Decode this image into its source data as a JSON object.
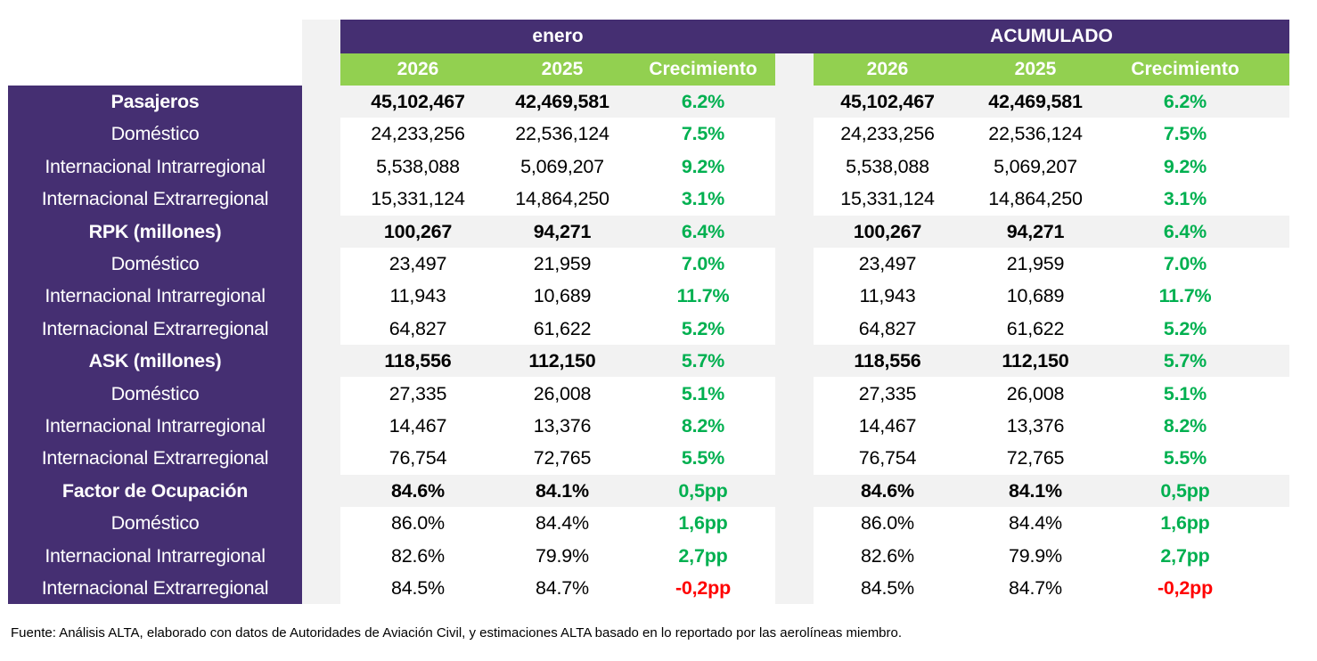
{
  "header": {
    "period_label": "enero",
    "cumulative_label": "ACUMULADO",
    "columns": [
      "2026",
      "2025",
      "Crecimiento"
    ]
  },
  "colors": {
    "header_purple": "#452f72",
    "header_green": "#92d050",
    "positive": "#00b050",
    "negative": "#ff0000",
    "section_row_bg": "#f2f2f2"
  },
  "rows": [
    {
      "label": "Pasajeros",
      "section": true,
      "enero": [
        "45,102,467",
        "42,469,581",
        "6.2%"
      ],
      "acumulado": [
        "45,102,467",
        "42,469,581",
        "6.2%"
      ]
    },
    {
      "label": "Doméstico",
      "section": false,
      "enero": [
        "24,233,256",
        "22,536,124",
        "7.5%"
      ],
      "acumulado": [
        "24,233,256",
        "22,536,124",
        "7.5%"
      ]
    },
    {
      "label": "Internacional Intrarregional",
      "section": false,
      "enero": [
        "5,538,088",
        "5,069,207",
        "9.2%"
      ],
      "acumulado": [
        "5,538,088",
        "5,069,207",
        "9.2%"
      ]
    },
    {
      "label": "Internacional Extrarregional",
      "section": false,
      "enero": [
        "15,331,124",
        "14,864,250",
        "3.1%"
      ],
      "acumulado": [
        "15,331,124",
        "14,864,250",
        "3.1%"
      ]
    },
    {
      "label": "RPK (millones)",
      "section": true,
      "enero": [
        "100,267",
        "94,271",
        "6.4%"
      ],
      "acumulado": [
        "100,267",
        "94,271",
        "6.4%"
      ]
    },
    {
      "label": "Doméstico",
      "section": false,
      "enero": [
        "23,497",
        "21,959",
        "7.0%"
      ],
      "acumulado": [
        "23,497",
        "21,959",
        "7.0%"
      ]
    },
    {
      "label": "Internacional Intrarregional",
      "section": false,
      "enero": [
        "11,943",
        "10,689",
        "11.7%"
      ],
      "acumulado": [
        "11,943",
        "10,689",
        "11.7%"
      ]
    },
    {
      "label": "Internacional Extrarregional",
      "section": false,
      "enero": [
        "64,827",
        "61,622",
        "5.2%"
      ],
      "acumulado": [
        "64,827",
        "61,622",
        "5.2%"
      ]
    },
    {
      "label": "ASK (millones)",
      "section": true,
      "enero": [
        "118,556",
        "112,150",
        "5.7%"
      ],
      "acumulado": [
        "118,556",
        "112,150",
        "5.7%"
      ]
    },
    {
      "label": "Doméstico",
      "section": false,
      "enero": [
        "27,335",
        "26,008",
        "5.1%"
      ],
      "acumulado": [
        "27,335",
        "26,008",
        "5.1%"
      ]
    },
    {
      "label": "Internacional Intrarregional",
      "section": false,
      "enero": [
        "14,467",
        "13,376",
        "8.2%"
      ],
      "acumulado": [
        "14,467",
        "13,376",
        "8.2%"
      ]
    },
    {
      "label": "Internacional Extrarregional",
      "section": false,
      "enero": [
        "76,754",
        "72,765",
        "5.5%"
      ],
      "acumulado": [
        "76,754",
        "72,765",
        "5.5%"
      ]
    },
    {
      "label": "Factor de Ocupación",
      "section": true,
      "enero": [
        "84.6%",
        "84.1%",
        "0,5pp"
      ],
      "acumulado": [
        "84.6%",
        "84.1%",
        "0,5pp"
      ]
    },
    {
      "label": "Doméstico",
      "section": false,
      "enero": [
        "86.0%",
        "84.4%",
        "1,6pp"
      ],
      "acumulado": [
        "86.0%",
        "84.4%",
        "1,6pp"
      ]
    },
    {
      "label": "Internacional Intrarregional",
      "section": false,
      "enero": [
        "82.6%",
        "79.9%",
        "2,7pp"
      ],
      "acumulado": [
        "82.6%",
        "79.9%",
        "2,7pp"
      ]
    },
    {
      "label": "Internacional Extrarregional",
      "section": false,
      "enero": [
        "84.5%",
        "84.7%",
        "-0,2pp"
      ],
      "acumulado": [
        "84.5%",
        "84.7%",
        "-0,2pp"
      ]
    }
  ],
  "footer": "Fuente: Análisis ALTA, elaborado con datos de Autoridades de Aviación Civil,  y estimaciones ALTA basado en lo reportado por las aerolíneas miembro."
}
